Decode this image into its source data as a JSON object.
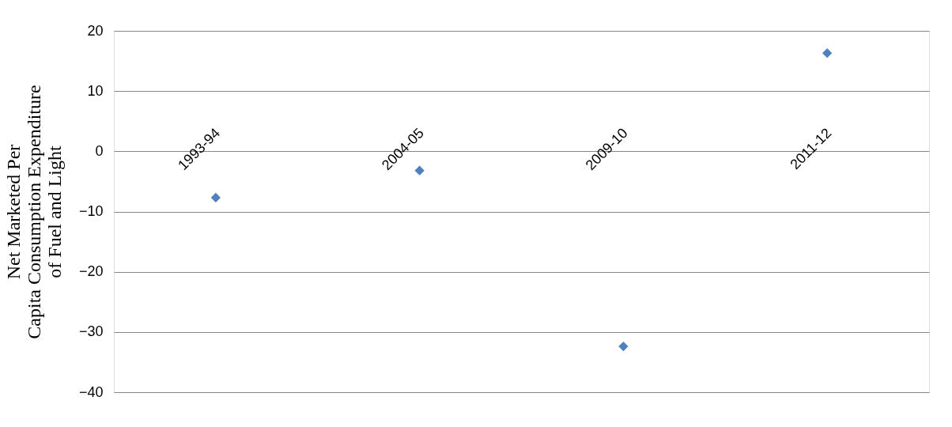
{
  "chart_data": {
    "type": "scatter",
    "ylabel": "Net Marketed Per Capita Consumption Expenditure of Fuel and Light",
    "categories": [
      "1993-94",
      "2004-05",
      "2009-10",
      "2011-12"
    ],
    "series": [
      {
        "color": "#4f81bd",
        "values": [
          -7.7,
          -3.2,
          -32.4,
          16.3
        ]
      }
    ],
    "ylim": [
      -40,
      20
    ],
    "yticks": [
      -40,
      -30,
      -20,
      -10,
      0,
      10,
      20
    ],
    "grid": "y",
    "marker": "diamond"
  }
}
